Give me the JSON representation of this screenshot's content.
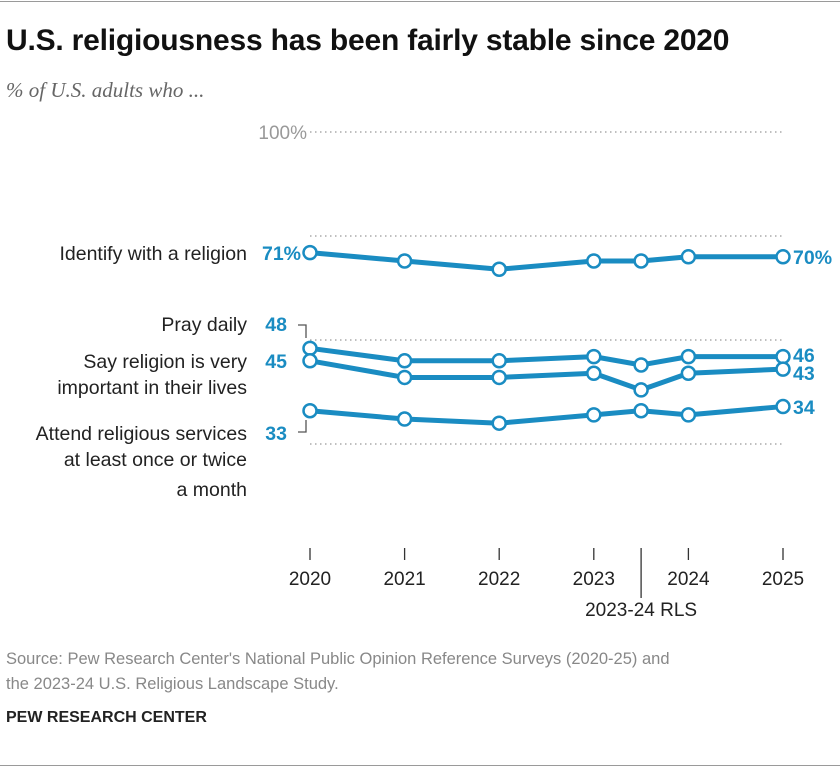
{
  "header": {
    "title": "U.S. religiousness has been fairly stable since 2020",
    "subtitle": "% of U.S. adults who ..."
  },
  "chart_data": {
    "type": "line",
    "title": "U.S. religiousness has been fairly stable since 2020",
    "subtitle": "% of U.S. adults who ...",
    "x": [
      2020,
      2021,
      2022,
      2023,
      2023.5,
      2024,
      2025
    ],
    "x_ticks": [
      2020,
      2021,
      2022,
      2023,
      2024,
      2025
    ],
    "x_tick_labels": [
      "2020",
      "2021",
      "2022",
      "2023",
      "2024",
      "2025"
    ],
    "x_annotation": {
      "x": 2023.5,
      "label": "2023-24 RLS"
    },
    "ylim": [
      0,
      100
    ],
    "y_gridlines": [
      100,
      75,
      50,
      25
    ],
    "y_tick_label": "100%",
    "grid": true,
    "line_color": "#1a8cc2",
    "series": [
      {
        "name": "Identify with a religion",
        "values": [
          71,
          69,
          67,
          69,
          69,
          70,
          70
        ],
        "start_label": "71%",
        "end_label": "70%"
      },
      {
        "name": "Pray daily",
        "values": [
          48,
          45,
          45,
          46,
          44,
          46,
          46
        ],
        "start_label": "48",
        "end_label": "46"
      },
      {
        "name": "Say religion is very important in their lives",
        "values": [
          45,
          41,
          41,
          42,
          38,
          42,
          43
        ],
        "start_label": "45",
        "end_label": "43"
      },
      {
        "name": "Attend religious services at least once or twice a month",
        "values": [
          33,
          31,
          30,
          32,
          33,
          32,
          34
        ],
        "start_label": "33",
        "end_label": "34"
      }
    ]
  },
  "footer": {
    "source_line1": "Source: Pew Research Center's National Public Opinion Reference Surveys (2020-25) and",
    "source_line2": "the 2023-24 U.S. Religious Landscape Study.",
    "brand": "PEW RESEARCH CENTER"
  }
}
